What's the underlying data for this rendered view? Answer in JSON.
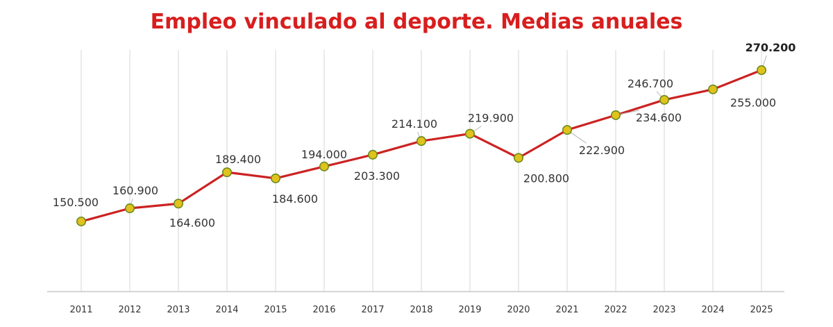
{
  "colors": {
    "title": "#d81e1e",
    "line": "#cc2222",
    "marker_fill": "#e0c21c",
    "marker_stroke": "#6a8a1e"
  },
  "chart_data": {
    "type": "line",
    "title": "Empleo vinculado al deporte. Medias anuales",
    "xlabel": "",
    "ylabel": "",
    "ylim": [
      95000,
      290000
    ],
    "grid": "vertical",
    "legend": "none",
    "categories": [
      "2011",
      "2012",
      "2013",
      "2014",
      "2015",
      "2016",
      "2017",
      "2018",
      "2019",
      "2020",
      "2021",
      "2022",
      "2023",
      "2024",
      "2025"
    ],
    "values": [
      150500,
      160900,
      164600,
      189400,
      184600,
      194000,
      203300,
      214100,
      219900,
      200800,
      222900,
      234600,
      246700,
      255000,
      270200
    ],
    "data_labels": [
      "150.500",
      "160.900",
      "164.600",
      "189.400",
      "184.600",
      "194.000",
      "203.300",
      "214.100",
      "219.900",
      "200.800",
      "222.900",
      "234.600",
      "246.700",
      "255.000",
      "270.200"
    ]
  }
}
